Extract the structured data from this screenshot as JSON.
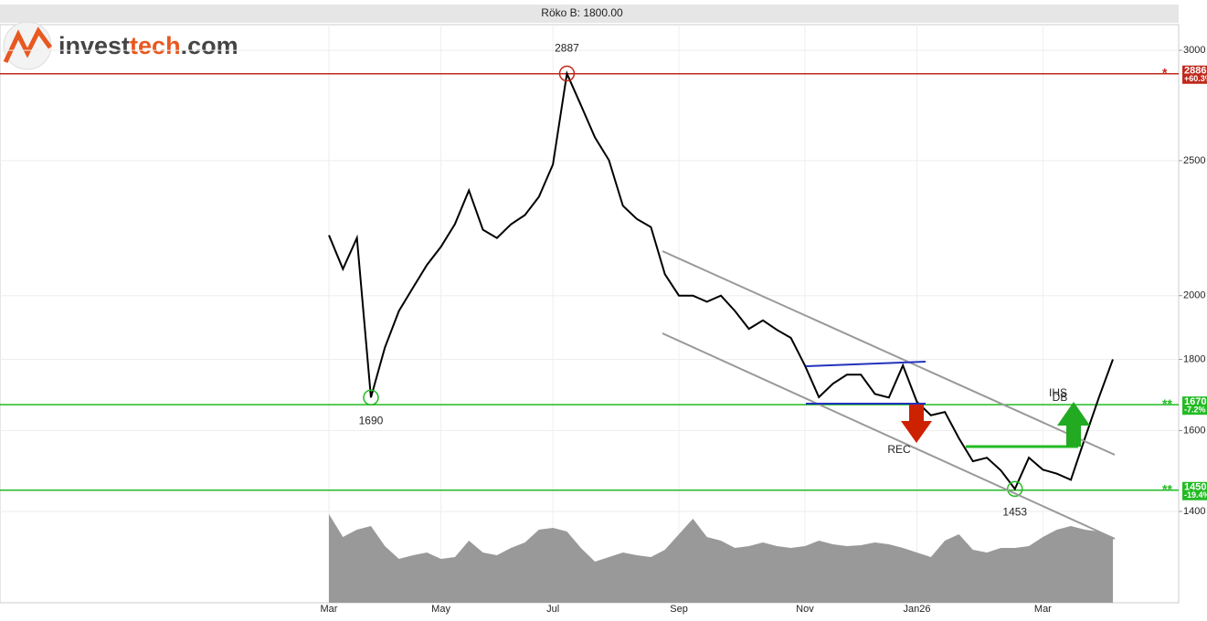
{
  "header": "Röko B: 1800.00",
  "logo": {
    "part1": "invest",
    "part2": "tech",
    "part3": ".com"
  },
  "chart_data": {
    "type": "line",
    "log": true,
    "grid": true,
    "categories": [
      "Mar",
      null,
      null,
      null,
      null,
      null,
      null,
      null,
      "May",
      null,
      null,
      null,
      null,
      null,
      null,
      null,
      "Jul",
      null,
      null,
      null,
      null,
      null,
      null,
      null,
      null,
      "Sep",
      null,
      null,
      null,
      null,
      null,
      null,
      null,
      null,
      "Nov",
      null,
      null,
      null,
      null,
      null,
      null,
      null,
      "Jan26",
      null,
      null,
      null,
      null,
      null,
      null,
      null,
      null,
      "Mar",
      null,
      null,
      null,
      null,
      null
    ],
    "series": [
      {
        "name": "Röko B",
        "color": "#000000",
        "values": [
          2210,
          2090,
          2200,
          1690,
          1836,
          1950,
          2026,
          2104,
          2168,
          2251,
          2380,
          2230,
          2200,
          2250,
          2285,
          2355,
          2484,
          2887,
          2740,
          2598,
          2502,
          2320,
          2270,
          2240,
          2072,
          2000,
          2000,
          1980,
          2000,
          1950,
          1893,
          1920,
          1890,
          1865,
          1782,
          1691,
          1729,
          1755,
          1755,
          1700,
          1690,
          1782,
          1678,
          1641,
          1650,
          1580,
          1521,
          1530,
          1498,
          1453,
          1530,
          1500,
          1490,
          1475,
          1580,
          1690,
          1800
        ],
        "value_labels": [
          null,
          null,
          null,
          "1690",
          null,
          null,
          null,
          null,
          null,
          null,
          null,
          null,
          null,
          null,
          null,
          null,
          null,
          "2887",
          null,
          null,
          null,
          null,
          null,
          null,
          null,
          null,
          null,
          null,
          null,
          null,
          null,
          null,
          null,
          null,
          null,
          null,
          null,
          null,
          null,
          null,
          null,
          null,
          null,
          null,
          null,
          null,
          null,
          null,
          null,
          "1453",
          null,
          null,
          null,
          null,
          null,
          null,
          null
        ]
      }
    ],
    "volume": [
      97,
      72,
      80,
      84,
      62,
      48,
      52,
      55,
      48,
      50,
      68,
      55,
      52,
      60,
      66,
      80,
      82,
      78,
      60,
      45,
      50,
      55,
      52,
      50,
      58,
      75,
      92,
      72,
      68,
      60,
      62,
      66,
      62,
      60,
      62,
      68,
      64,
      62,
      63,
      66,
      64,
      60,
      55,
      50,
      68,
      75,
      58,
      55,
      60,
      60,
      62,
      72,
      80,
      84,
      80,
      78,
      72
    ],
    "volume_color": "#999999",
    "ylim": [
      1400,
      3130
    ],
    "yticks": [
      1400,
      1600,
      1800,
      2000,
      2500,
      3000
    ],
    "levels": [
      {
        "value": 2886,
        "label": "2886",
        "marker": "*",
        "change": "+60.3%",
        "color": "#c0281c"
      },
      {
        "value": 1670,
        "label": "1670",
        "marker": "**",
        "change": "-7.2%",
        "color": "#22bb22"
      },
      {
        "value": 1450,
        "label": "1450",
        "marker": "**",
        "change": "-19.4%",
        "color": "#22bb22"
      }
    ],
    "annotations": [
      "REC",
      "IHS",
      "DB"
    ]
  }
}
